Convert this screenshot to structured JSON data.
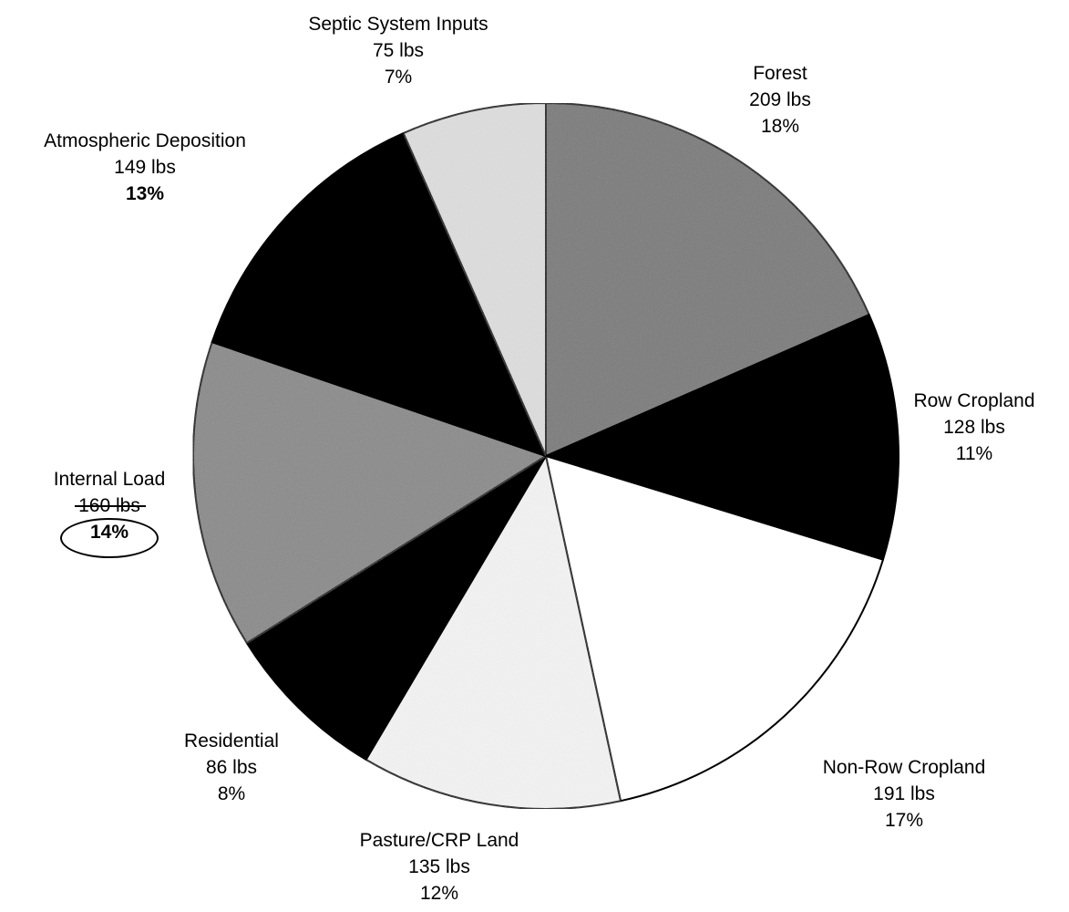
{
  "chart_data": {
    "type": "pie",
    "start_angle_deg": 0,
    "direction": "clockwise",
    "slices": [
      {
        "label": "Forest",
        "value": 209,
        "value_text": "209 lbs",
        "percent_text": "18%",
        "fill": "#7a7a7a"
      },
      {
        "label": "Row Cropland",
        "value": 128,
        "value_text": "128 lbs",
        "percent_text": "11%",
        "fill": "#000000"
      },
      {
        "label": "Non-Row Cropland",
        "value": 191,
        "value_text": "191 lbs",
        "percent_text": "17%",
        "fill": "#ffffff"
      },
      {
        "label": "Pasture/CRP Land",
        "value": 135,
        "value_text": "135 lbs",
        "percent_text": "12%",
        "fill": "#f4f4f4"
      },
      {
        "label": "Residential",
        "value": 86,
        "value_text": "86 lbs",
        "percent_text": "8%",
        "fill": "#000000"
      },
      {
        "label": "Internal Load",
        "value": 160,
        "value_text": "160 lbs",
        "percent_text": "14%",
        "fill": "#8a8a8a"
      },
      {
        "label": "Atmospheric Deposition",
        "value": 149,
        "value_text": "149 lbs",
        "percent_text": "13%",
        "fill": "#000000"
      },
      {
        "label": "Septic System Inputs",
        "value": 75,
        "value_text": "75 lbs",
        "percent_text": "7%",
        "fill": "#dedede"
      }
    ],
    "legend": "none",
    "annotation": {
      "slice": "Internal Load",
      "marks": "hand-drawn circle around percent, strike-through on value"
    }
  }
}
